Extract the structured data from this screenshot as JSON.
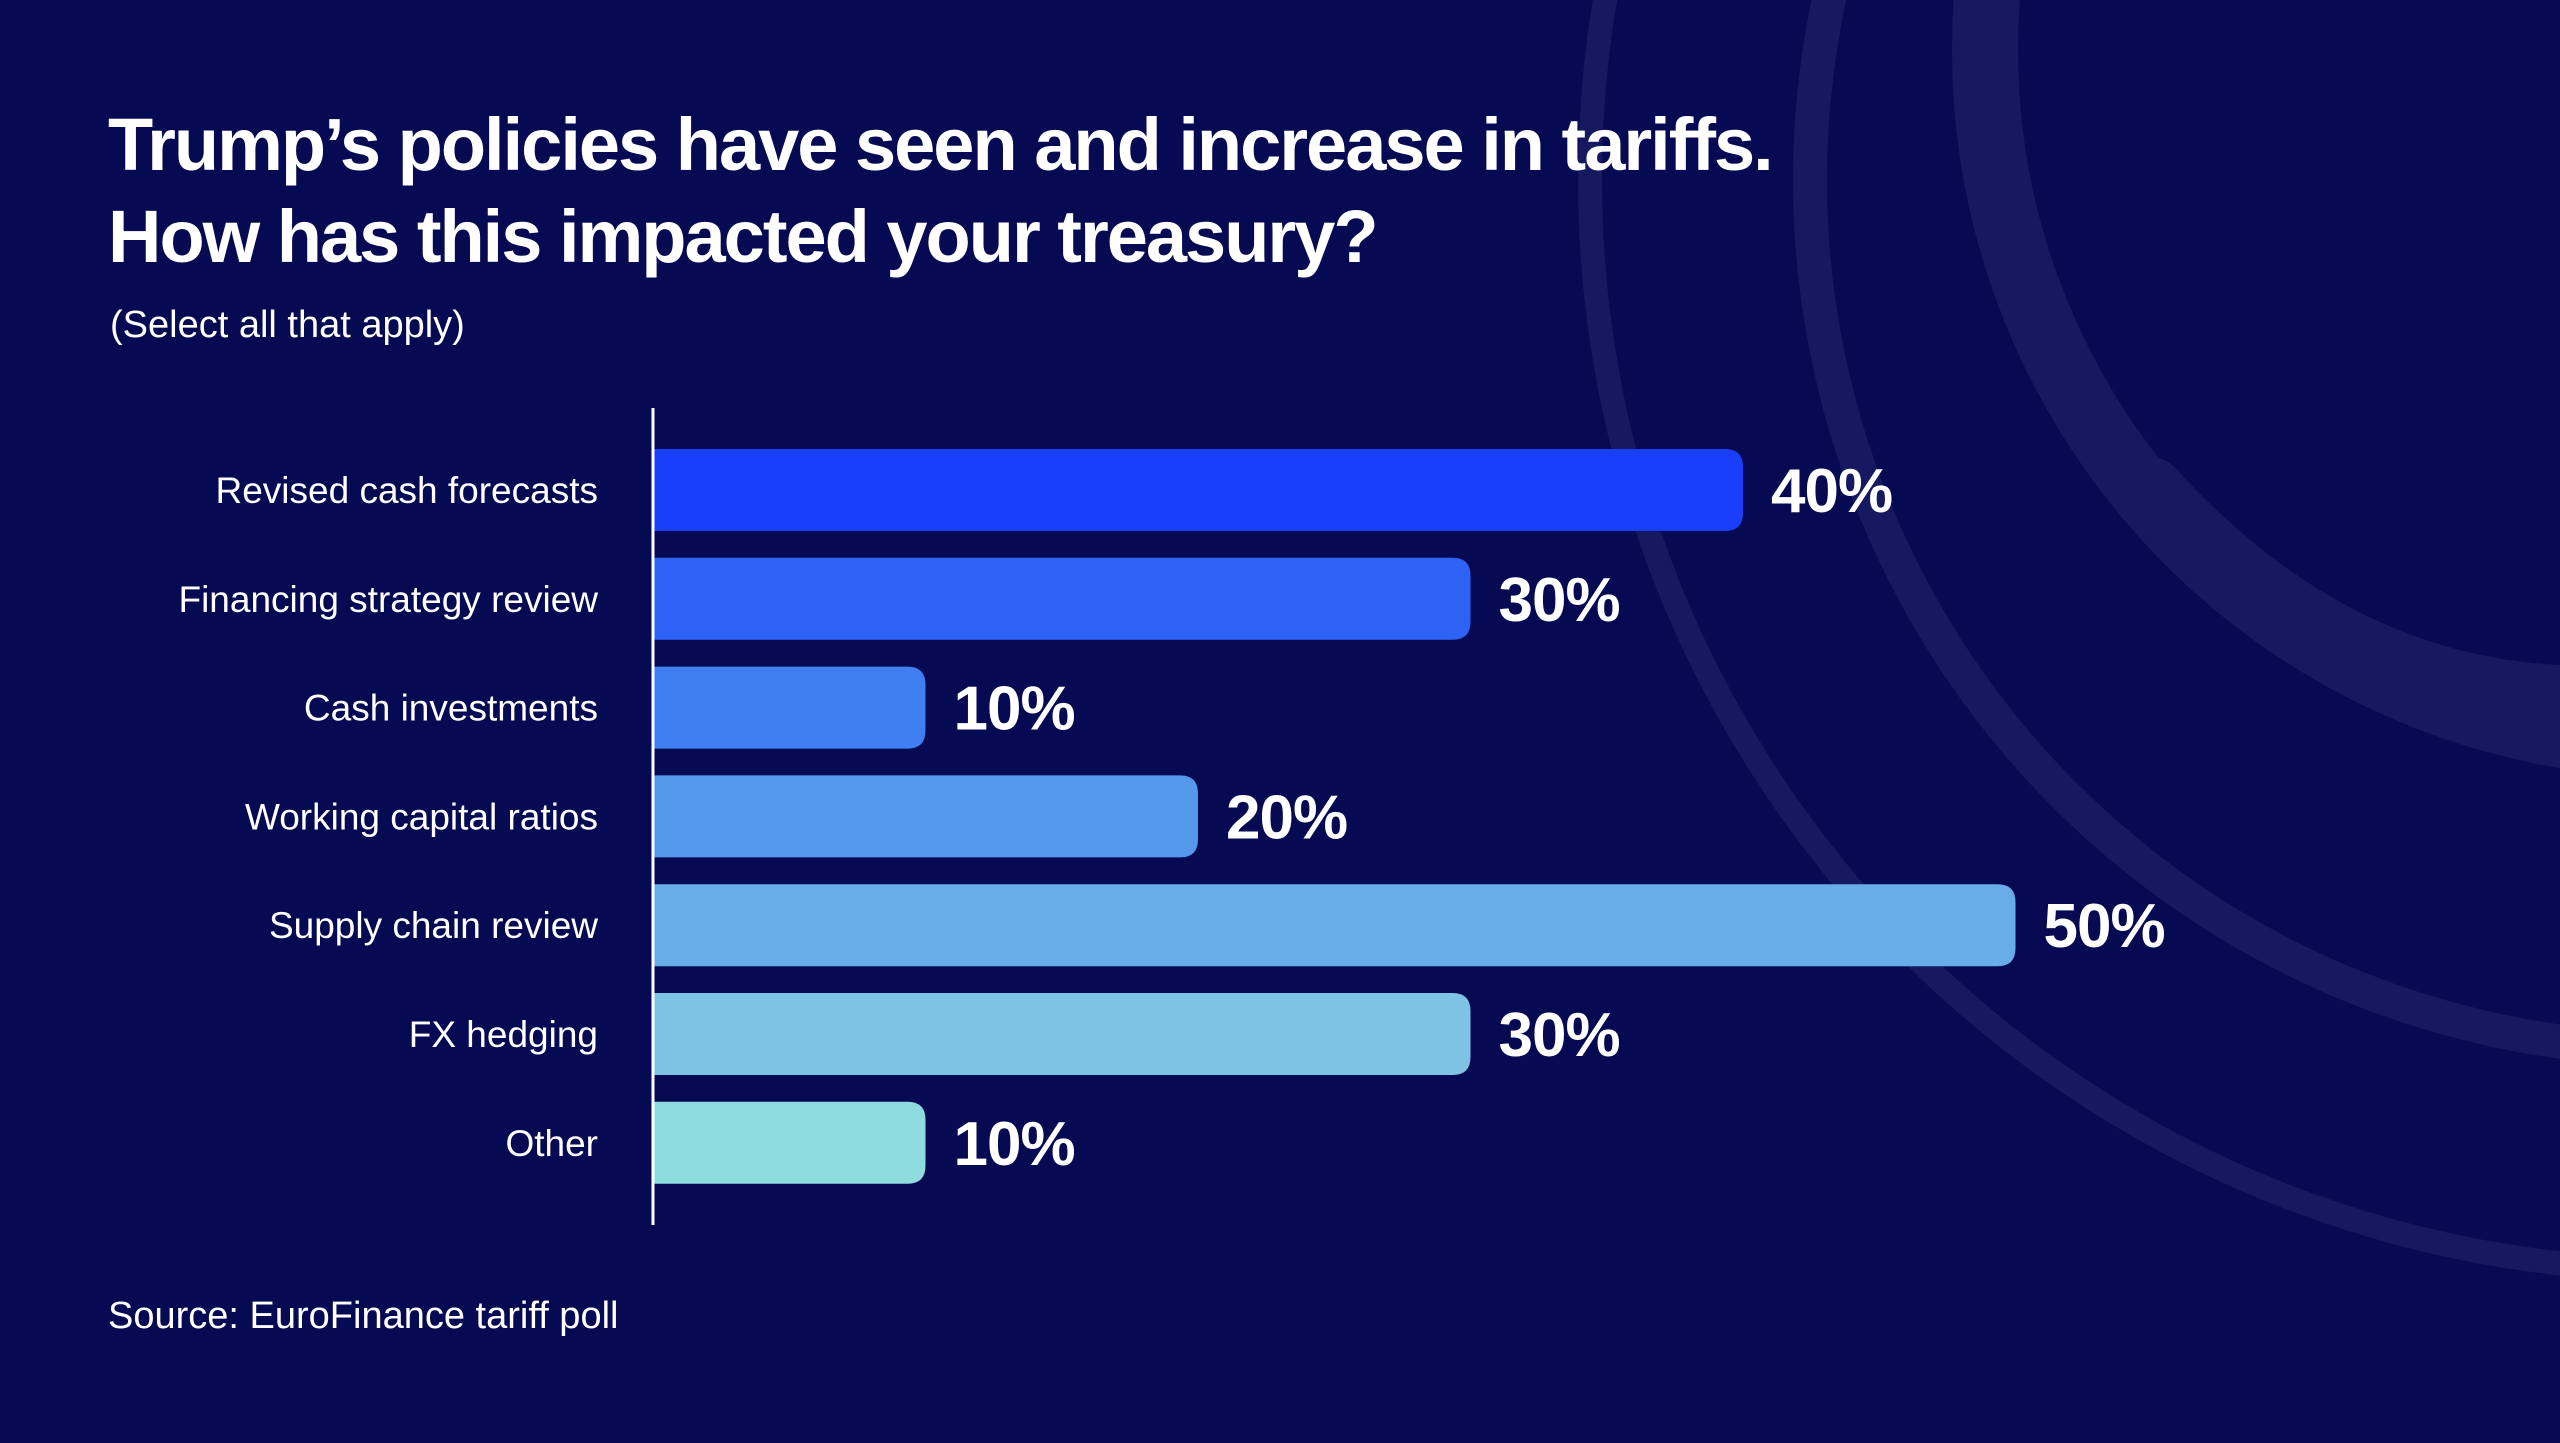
{
  "title_lines": [
    "Trump’s policies have seen and increase in tariffs.",
    "How has this impacted your treasury?"
  ],
  "subtitle": "(Select all that apply)",
  "source": "Source: EuroFinance tariff poll",
  "colors": {
    "background": "#060a52",
    "decor_arc": "#16195f",
    "axis": "#ffffff",
    "bars": [
      "#1a3ffb",
      "#2e62f4",
      "#3f7ff1",
      "#5498ec",
      "#68ade8",
      "#7ec3e4",
      "#8edcde"
    ]
  },
  "chart_data": {
    "type": "bar",
    "orientation": "horizontal",
    "title": "Trump’s policies have seen and increase in tariffs. How has this impacted your treasury?",
    "subtitle": "(Select all that apply)",
    "categories": [
      "Revised cash forecasts",
      "Financing strategy review",
      "Cash investments",
      "Working capital ratios",
      "Supply chain review",
      "FX hedging",
      "Other"
    ],
    "values": [
      40,
      30,
      10,
      20,
      50,
      30,
      10
    ],
    "value_labels": [
      "40%",
      "30%",
      "10%",
      "20%",
      "50%",
      "30%",
      "10%"
    ],
    "unit": "%",
    "xlim": [
      0,
      100
    ],
    "xlabel": "",
    "ylabel": "",
    "grid": false,
    "legend": "none"
  }
}
